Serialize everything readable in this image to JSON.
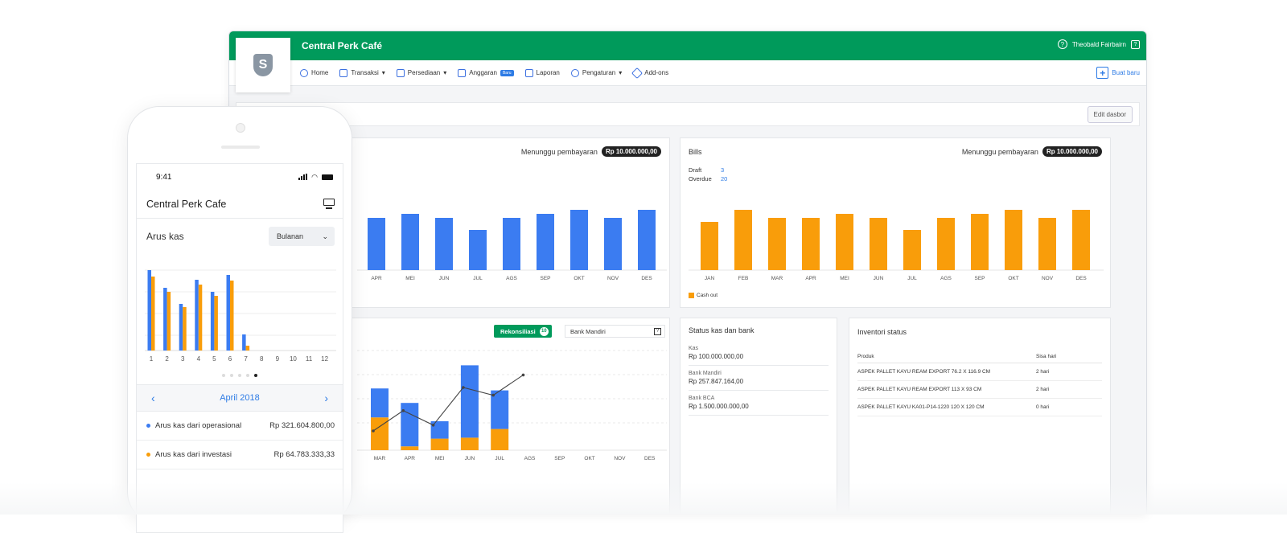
{
  "colors": {
    "brand_green": "#009a5b",
    "blue": "#3b7cf1",
    "orange": "#f99d0a",
    "link_blue": "#2d7be5"
  },
  "topbar": {
    "title": "Central Perk Café",
    "user": "Theobald Fairbairn",
    "help_icon": "question-circle-icon",
    "logo_icon": "shield-s-logo"
  },
  "nav": {
    "items": [
      {
        "label": "Home",
        "icon": "dashboard-icon"
      },
      {
        "label": "Transaksi",
        "icon": "coins-icon",
        "caret": "▾"
      },
      {
        "label": "Persediaan",
        "icon": "box-icon",
        "caret": "▾"
      },
      {
        "label": "Anggaran",
        "icon": "calculator-icon",
        "badge": "Baru"
      },
      {
        "label": "Laporan",
        "icon": "report-icon"
      },
      {
        "label": "Pengaturan",
        "icon": "gear-icon",
        "caret": "▾"
      },
      {
        "label": "Add-ons",
        "icon": "tag-icon"
      }
    ],
    "create": "Buat baru"
  },
  "dashboard": {
    "edit_button": "Edit dasbor"
  },
  "invoices": {
    "waiting_label": "Menunggu pembayaran",
    "waiting_amount": "Rp 10.000.000,00"
  },
  "bills": {
    "title": "Bills",
    "waiting_label": "Menunggu pembayaran",
    "waiting_amount": "Rp 10.000.000,00",
    "draft_label": "Draft",
    "draft_count": "3",
    "overdue_label": "Overdue",
    "overdue_count": "20",
    "legend": "Cash out"
  },
  "bank": {
    "reconcile_label": "Rekonsiliasi",
    "reconcile_count": "10",
    "account": "Bank Mandiri"
  },
  "cash_status": {
    "title": "Status kas dan bank",
    "items": [
      {
        "label": "Kas",
        "value": "Rp 100.000.000,00"
      },
      {
        "label": "Bank Mandiri",
        "value": "Rp 257.847.164,00"
      },
      {
        "label": "Bank BCA",
        "value": "Rp 1.500.000.000,00"
      }
    ]
  },
  "inventory": {
    "title": "Inventori status",
    "col_product": "Produk",
    "col_days": "Sisa hari",
    "rows": [
      {
        "product": "ASPEK PALLET KAYU REAM EXPORT 76.2 X 116.9 CM",
        "days": "2 hari"
      },
      {
        "product": "ASPEK PALLET KAYU REAM EXPORT 113 X 93 CM",
        "days": "2 hari"
      },
      {
        "product": "ASPEK PALLET KAYU KA01-P14-1220 120 X 120 CM",
        "days": "0 hari"
      }
    ]
  },
  "phone": {
    "time": "9:41",
    "app_title": "Central Perk Cafe",
    "section": "Arus kas",
    "period": "Bulanan",
    "month": "April 2018",
    "flows": [
      {
        "label": "Arus kas dari operasional",
        "value": "Rp 321.604.800,00",
        "color": "#3b7cf1"
      },
      {
        "label": "Arus kas dari investasi",
        "value": "Rp 64.783.333,33",
        "color": "#f99d0a"
      }
    ]
  },
  "chart_data": [
    {
      "type": "bar",
      "name": "invoices",
      "categories": [
        "APR",
        "MEI",
        "JUN",
        "JUL",
        "AGS",
        "SEP",
        "OKT",
        "NOV",
        "DES"
      ],
      "values": [
        13,
        14,
        13,
        10,
        13,
        14,
        15,
        13,
        15
      ]
    },
    {
      "type": "bar",
      "name": "bills",
      "categories": [
        "JAN",
        "FEB",
        "MAR",
        "APR",
        "MEI",
        "JUN",
        "JUL",
        "AGS",
        "SEP",
        "OKT",
        "NOV",
        "DES"
      ],
      "series": [
        {
          "name": "Cash out",
          "values": [
            12,
            15,
            13,
            13,
            14,
            13,
            10,
            13,
            14,
            15,
            13,
            15
          ]
        }
      ]
    },
    {
      "type": "bar",
      "name": "bank",
      "categories": [
        "MAR",
        "APR",
        "MEI",
        "JUN",
        "JUL",
        "AGS",
        "SEP",
        "OKT",
        "NOV",
        "DES"
      ],
      "series": [
        {
          "name": "blue",
          "values": [
            30,
            45,
            18,
            75,
            40,
            0,
            0,
            0,
            0,
            0
          ]
        },
        {
          "name": "orange",
          "values": [
            34,
            4,
            12,
            13,
            22,
            0,
            0,
            0,
            0,
            0
          ]
        }
      ],
      "line": [
        15,
        36,
        21,
        60,
        52,
        73,
        null,
        null,
        null,
        null
      ],
      "ylim": [
        0,
        90
      ]
    },
    {
      "type": "bar",
      "name": "phone_cash_flow",
      "categories": [
        "1",
        "2",
        "3",
        "4",
        "5",
        "6",
        "7",
        "8",
        "9",
        "10",
        "11",
        "12"
      ],
      "series": [
        {
          "name": "Arus kas dari operasional",
          "values": [
            100,
            78,
            58,
            88,
            73,
            94,
            20,
            0,
            0,
            0,
            0,
            0
          ]
        },
        {
          "name": "Arus kas dari investasi",
          "values": [
            92,
            73,
            54,
            82,
            68,
            87,
            6,
            0,
            0,
            0,
            0,
            0
          ]
        }
      ],
      "ylim": [
        0,
        110
      ]
    }
  ]
}
